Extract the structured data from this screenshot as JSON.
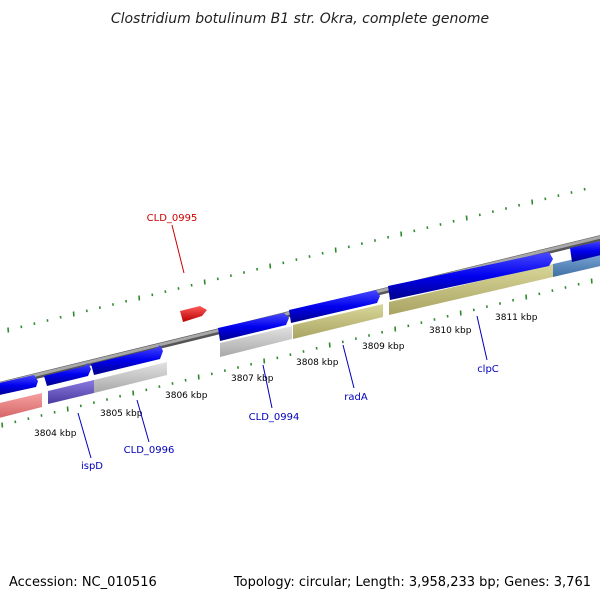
{
  "title": "Clostridium botulinum B1 str. Okra, complete genome",
  "footer": {
    "accession": "Accession: NC_010516",
    "summary": "Topology: circular; Length: 3,958,233 bp; Genes: 3,761"
  },
  "colors": {
    "backbone": "#8c8c8c",
    "tick": "#2e8b2e",
    "cds": "#0000ee",
    "cds_highlight": "#ee0000",
    "label_blue": "#0000bb",
    "label_red": "#cc0000"
  },
  "kbp_labels": [
    "3804 kbp",
    "3805 kbp",
    "3806 kbp",
    "3807 kbp",
    "3808 kbp",
    "3809 kbp",
    "3810 kbp",
    "3811 kbp"
  ],
  "genes": [
    {
      "name": "CLD_0995",
      "color": "label_red"
    },
    {
      "name": "ispD",
      "color": "label_blue"
    },
    {
      "name": "CLD_0996",
      "color": "label_blue"
    },
    {
      "name": "CLD_0994",
      "color": "label_blue"
    },
    {
      "name": "radA",
      "color": "label_blue"
    },
    {
      "name": "clpC",
      "color": "label_blue"
    }
  ]
}
